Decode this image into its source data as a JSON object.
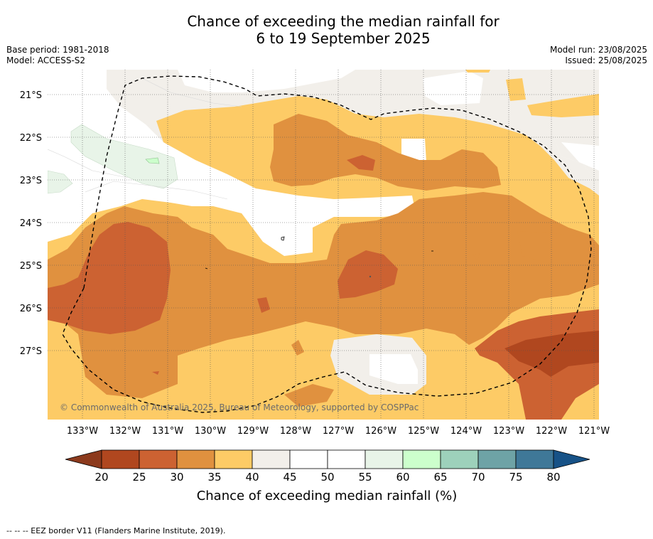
{
  "title_line1": "Chance of exceeding the median rainfall for",
  "title_line2": "6 to 19 September 2025",
  "base_period": "Base period: 1981-2018",
  "model": "Model: ACCESS-S2",
  "model_run": "Model run: 23/08/2025",
  "issued": "Issued: 25/08/2025",
  "copyright": "© Commonwealth of Australia 2025, Bureau of Meteorology, supported by COSPPac",
  "lat_labels": [
    "21°S",
    "22°S",
    "23°S",
    "24°S",
    "25°S",
    "26°S",
    "27°S"
  ],
  "lon_labels": [
    "133°W",
    "132°W",
    "131°W",
    "130°W",
    "129°W",
    "128°W",
    "127°W",
    "126°W",
    "125°W",
    "124°W",
    "123°W",
    "122°W",
    "121°W"
  ],
  "colorbar": {
    "ticks": [
      "20",
      "25",
      "30",
      "35",
      "40",
      "45",
      "50",
      "55",
      "60",
      "65",
      "70",
      "75",
      "80"
    ],
    "colors": [
      "#8c3a1d",
      "#b0471f",
      "#cc6232",
      "#e0913f",
      "#fdcb66",
      "#f2efea",
      "#ffffff",
      "#ffffff",
      "#e8f4e8",
      "#ccffcc",
      "#9dd1bb",
      "#6ea3a6",
      "#3f7898",
      "#175287"
    ],
    "title": "Chance of exceeding median rainfall (%)"
  },
  "footnote": "-- -- -- EEZ border V11 (Flanders Marine Institute, 2019)."
}
